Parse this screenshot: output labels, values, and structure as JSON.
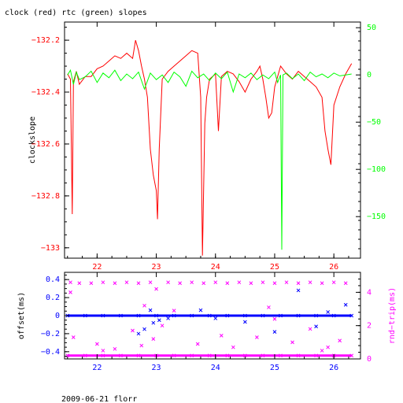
{
  "page": {
    "title": "clock (red) rtc (green) slopes",
    "footer": "2009-06-21 florr"
  },
  "colors": {
    "red": "#ff0000",
    "green": "#00ff00",
    "blue": "#0000ff",
    "magenta": "#ff00ff",
    "axis": "#000000"
  },
  "chart_data": [
    {
      "type": "line",
      "title": "clock (red) rtc (green) slopes",
      "xlabel": "",
      "x_ticks": [
        22,
        23,
        24,
        25,
        26
      ],
      "xlim": [
        21.45,
        26.45
      ],
      "left_axis": {
        "label": "clockslope",
        "ylim": [
          -133.04,
          -132.13
        ],
        "ticks": [
          -132.2,
          -132.4,
          -132.6,
          -132.8,
          -133
        ],
        "tick_labels": [
          "−132.2",
          "−132.4",
          "−132.6",
          "−132.8",
          "−133"
        ]
      },
      "right_axis": {
        "label": "",
        "ylim": [
          -194,
          56
        ],
        "ticks": [
          50,
          0,
          -50,
          -100,
          -150
        ],
        "tick_labels": [
          "50",
          "0",
          "−50",
          "−100",
          "−150"
        ]
      },
      "series": [
        {
          "axis": "left",
          "color": "#ff0000",
          "points": [
            [
              21.5,
              -132.33
            ],
            [
              21.55,
              -132.35
            ],
            [
              21.58,
              -132.87
            ],
            [
              21.6,
              -132.36
            ],
            [
              21.65,
              -132.32
            ],
            [
              21.7,
              -132.37
            ],
            [
              21.8,
              -132.34
            ],
            [
              21.9,
              -132.34
            ],
            [
              22.0,
              -132.31
            ],
            [
              22.1,
              -132.3
            ],
            [
              22.2,
              -132.28
            ],
            [
              22.3,
              -132.26
            ],
            [
              22.4,
              -132.27
            ],
            [
              22.5,
              -132.25
            ],
            [
              22.6,
              -132.27
            ],
            [
              22.65,
              -132.2
            ],
            [
              22.7,
              -132.24
            ],
            [
              22.75,
              -132.3
            ],
            [
              22.8,
              -132.35
            ],
            [
              22.85,
              -132.42
            ],
            [
              22.9,
              -132.62
            ],
            [
              22.95,
              -132.72
            ],
            [
              23.0,
              -132.78
            ],
            [
              23.02,
              -132.89
            ],
            [
              23.05,
              -132.62
            ],
            [
              23.1,
              -132.35
            ],
            [
              23.2,
              -132.32
            ],
            [
              23.3,
              -132.3
            ],
            [
              23.4,
              -132.28
            ],
            [
              23.5,
              -132.26
            ],
            [
              23.6,
              -132.24
            ],
            [
              23.7,
              -132.25
            ],
            [
              23.75,
              -132.42
            ],
            [
              23.78,
              -133.03
            ],
            [
              23.82,
              -132.52
            ],
            [
              23.85,
              -132.42
            ],
            [
              23.9,
              -132.35
            ],
            [
              24.0,
              -132.33
            ],
            [
              24.05,
              -132.55
            ],
            [
              24.1,
              -132.34
            ],
            [
              24.2,
              -132.32
            ],
            [
              24.3,
              -132.33
            ],
            [
              24.4,
              -132.36
            ],
            [
              24.5,
              -132.4
            ],
            [
              24.6,
              -132.35
            ],
            [
              24.7,
              -132.32
            ],
            [
              24.75,
              -132.3
            ],
            [
              24.8,
              -132.35
            ],
            [
              24.85,
              -132.42
            ],
            [
              24.9,
              -132.5
            ],
            [
              24.95,
              -132.48
            ],
            [
              25.0,
              -132.38
            ],
            [
              25.1,
              -132.3
            ],
            [
              25.2,
              -132.33
            ],
            [
              25.3,
              -132.35
            ],
            [
              25.4,
              -132.32
            ],
            [
              25.5,
              -132.34
            ],
            [
              25.6,
              -132.36
            ],
            [
              25.7,
              -132.38
            ],
            [
              25.8,
              -132.42
            ],
            [
              25.85,
              -132.55
            ],
            [
              25.9,
              -132.62
            ],
            [
              25.95,
              -132.68
            ],
            [
              26.0,
              -132.45
            ],
            [
              26.1,
              -132.38
            ],
            [
              26.2,
              -132.33
            ],
            [
              26.3,
              -132.29
            ]
          ]
        },
        {
          "axis": "right",
          "color": "#00ff00",
          "points": [
            [
              21.5,
              0
            ],
            [
              21.55,
              5
            ],
            [
              21.6,
              -10
            ],
            [
              21.65,
              3
            ],
            [
              21.7,
              -5
            ],
            [
              21.8,
              -2
            ],
            [
              21.9,
              4
            ],
            [
              22.0,
              -8
            ],
            [
              22.1,
              2
            ],
            [
              22.2,
              -3
            ],
            [
              22.3,
              5
            ],
            [
              22.4,
              -6
            ],
            [
              22.5,
              1
            ],
            [
              22.6,
              -4
            ],
            [
              22.7,
              3
            ],
            [
              22.8,
              -15
            ],
            [
              22.9,
              2
            ],
            [
              23.0,
              -5
            ],
            [
              23.1,
              0
            ],
            [
              23.2,
              -8
            ],
            [
              23.3,
              3
            ],
            [
              23.4,
              -2
            ],
            [
              23.5,
              -12
            ],
            [
              23.6,
              4
            ],
            [
              23.7,
              -3
            ],
            [
              23.8,
              1
            ],
            [
              23.9,
              -6
            ],
            [
              24.0,
              2
            ],
            [
              24.1,
              -4
            ],
            [
              24.2,
              3
            ],
            [
              24.3,
              -18
            ],
            [
              24.4,
              1
            ],
            [
              24.5,
              -3
            ],
            [
              24.6,
              2
            ],
            [
              24.7,
              -5
            ],
            [
              24.8,
              0
            ],
            [
              24.9,
              -4
            ],
            [
              25.0,
              3
            ],
            [
              25.05,
              -8
            ],
            [
              25.1,
              0
            ],
            [
              25.12,
              -185
            ],
            [
              25.14,
              0
            ],
            [
              25.2,
              2
            ],
            [
              25.3,
              -4
            ],
            [
              25.4,
              1
            ],
            [
              25.5,
              -6
            ],
            [
              25.6,
              3
            ],
            [
              25.7,
              -2
            ],
            [
              25.8,
              1
            ],
            [
              25.9,
              -3
            ],
            [
              26.0,
              2
            ],
            [
              26.1,
              -1
            ],
            [
              26.2,
              0
            ],
            [
              26.3,
              1
            ]
          ]
        }
      ]
    },
    {
      "type": "scatter",
      "x_ticks": [
        22,
        23,
        24,
        25,
        26
      ],
      "xlim": [
        21.45,
        26.45
      ],
      "left_axis": {
        "label": "offset(ms)",
        "ylim": [
          -0.48,
          0.48
        ],
        "ticks": [
          0.4,
          0.2,
          0,
          -0.2,
          -0.4
        ],
        "tick_labels": [
          "0.4",
          "0.2",
          "0",
          "−0.2",
          "−0.4"
        ]
      },
      "right_axis": {
        "label": "rnd−trip(ms)",
        "ylim": [
          0,
          5.2
        ],
        "ticks": [
          4,
          2,
          0
        ],
        "tick_labels": [
          "4",
          "2",
          "0"
        ]
      },
      "series": [
        {
          "axis": "left",
          "color": "#0000ff",
          "points": [
            [
              21.5,
              0
            ],
            [
              21.8,
              0
            ],
            [
              22.1,
              0
            ],
            [
              22.4,
              0
            ],
            [
              22.7,
              0
            ],
            [
              23.0,
              0
            ],
            [
              23.3,
              0
            ],
            [
              23.6,
              0
            ],
            [
              23.9,
              0
            ],
            [
              24.2,
              0
            ],
            [
              24.5,
              0
            ],
            [
              24.8,
              0
            ],
            [
              25.1,
              0
            ],
            [
              25.4,
              0
            ],
            [
              25.7,
              0
            ],
            [
              26.0,
              0
            ],
            [
              26.3,
              0
            ],
            [
              22.7,
              -0.2
            ],
            [
              22.8,
              -0.15
            ],
            [
              22.95,
              -0.08
            ],
            [
              23.05,
              -0.05
            ],
            [
              23.75,
              0.06
            ],
            [
              24.0,
              -0.03
            ],
            [
              24.5,
              -0.07
            ],
            [
              25.0,
              -0.18
            ],
            [
              25.4,
              0.28
            ],
            [
              25.7,
              -0.12
            ],
            [
              25.9,
              0.04
            ],
            [
              26.2,
              0.12
            ],
            [
              22.9,
              0.06
            ],
            [
              23.2,
              -0.03
            ]
          ]
        },
        {
          "axis": "right",
          "color": "#ff00ff",
          "points": [
            [
              21.5,
              0.2
            ],
            [
              21.8,
              0.2
            ],
            [
              22.1,
              0.2
            ],
            [
              22.4,
              0.2
            ],
            [
              22.7,
              0.2
            ],
            [
              23.0,
              0.2
            ],
            [
              23.3,
              0.2
            ],
            [
              23.6,
              0.2
            ],
            [
              23.9,
              0.2
            ],
            [
              24.2,
              0.2
            ],
            [
              24.5,
              0.2
            ],
            [
              24.8,
              0.2
            ],
            [
              25.1,
              0.2
            ],
            [
              25.4,
              0.2
            ],
            [
              25.7,
              0.2
            ],
            [
              26.0,
              0.2
            ],
            [
              26.3,
              0.2
            ],
            [
              21.55,
              4.6
            ],
            [
              21.7,
              4.55
            ],
            [
              21.9,
              4.55
            ],
            [
              22.1,
              4.6
            ],
            [
              22.3,
              4.55
            ],
            [
              22.5,
              4.6
            ],
            [
              22.7,
              4.55
            ],
            [
              22.9,
              4.6
            ],
            [
              23.0,
              4.2
            ],
            [
              23.2,
              4.6
            ],
            [
              23.4,
              4.55
            ],
            [
              23.6,
              4.6
            ],
            [
              23.8,
              4.55
            ],
            [
              24.0,
              4.6
            ],
            [
              24.2,
              4.55
            ],
            [
              24.4,
              4.6
            ],
            [
              24.6,
              4.55
            ],
            [
              24.8,
              4.6
            ],
            [
              25.0,
              4.55
            ],
            [
              25.2,
              4.6
            ],
            [
              25.4,
              4.55
            ],
            [
              25.6,
              4.6
            ],
            [
              25.8,
              4.55
            ],
            [
              26.0,
              4.6
            ],
            [
              26.2,
              4.55
            ],
            [
              21.55,
              4.0
            ],
            [
              21.6,
              1.3
            ],
            [
              22.0,
              0.9
            ],
            [
              22.1,
              0.5
            ],
            [
              22.3,
              0.6
            ],
            [
              22.6,
              1.7
            ],
            [
              22.75,
              0.8
            ],
            [
              22.95,
              1.2
            ],
            [
              23.1,
              2.0
            ],
            [
              23.7,
              0.9
            ],
            [
              24.1,
              1.4
            ],
            [
              24.3,
              0.7
            ],
            [
              24.7,
              1.3
            ],
            [
              25.0,
              2.4
            ],
            [
              25.3,
              1.0
            ],
            [
              25.6,
              1.8
            ],
            [
              25.9,
              0.7
            ],
            [
              26.1,
              1.1
            ],
            [
              25.8,
              0.5
            ],
            [
              24.9,
              3.1
            ],
            [
              23.3,
              2.9
            ],
            [
              22.8,
              3.2
            ]
          ]
        }
      ]
    }
  ]
}
